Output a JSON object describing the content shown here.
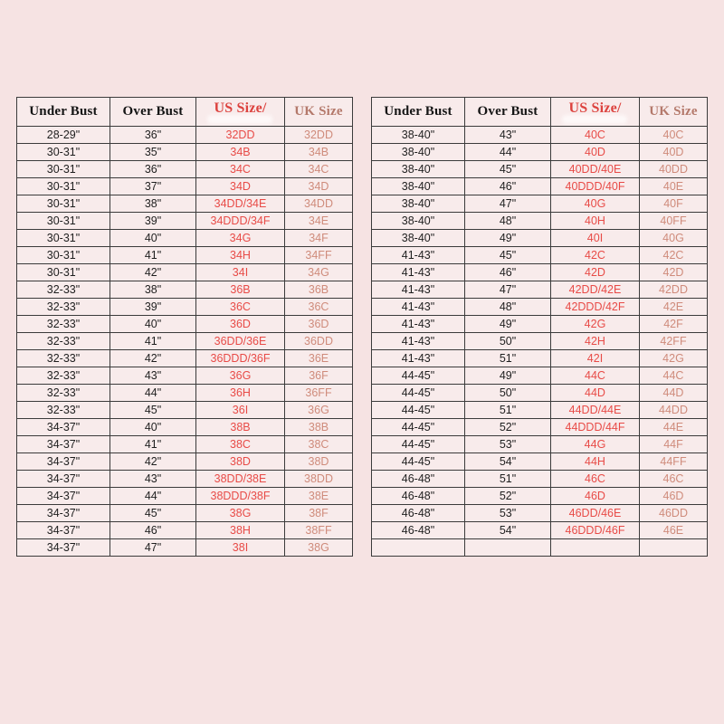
{
  "page": {
    "background_color": "#f6e3e3"
  },
  "colors": {
    "table_border": "#3b3b3b",
    "cell_background": "#f8ebeb",
    "measurement_text": "#1f1f1f",
    "us_header_text": "#dc423e",
    "uk_header_text": "#b4796b",
    "us_size_text": "#e84b47",
    "uk_size_text": "#cf8b7b"
  },
  "chart_data": [
    {
      "type": "table",
      "columns": [
        "Under Bust",
        "Over Bust",
        "US Size/",
        "UK Size"
      ],
      "rows": [
        [
          "28-29\"",
          "36\"",
          "32DD",
          "32DD"
        ],
        [
          "30-31\"",
          "35\"",
          "34B",
          "34B"
        ],
        [
          "30-31\"",
          "36\"",
          "34C",
          "34C"
        ],
        [
          "30-31\"",
          "37\"",
          "34D",
          "34D"
        ],
        [
          "30-31\"",
          "38\"",
          "34DD/34E",
          "34DD"
        ],
        [
          "30-31\"",
          "39\"",
          "34DDD/34F",
          "34E"
        ],
        [
          "30-31\"",
          "40\"",
          "34G",
          "34F"
        ],
        [
          "30-31\"",
          "41\"",
          "34H",
          "34FF"
        ],
        [
          "30-31\"",
          "42\"",
          "34I",
          "34G"
        ],
        [
          "32-33\"",
          "38\"",
          "36B",
          "36B"
        ],
        [
          "32-33\"",
          "39\"",
          "36C",
          "36C"
        ],
        [
          "32-33\"",
          "40\"",
          "36D",
          "36D"
        ],
        [
          "32-33\"",
          "41\"",
          "36DD/36E",
          "36DD"
        ],
        [
          "32-33\"",
          "42\"",
          "36DDD/36F",
          "36E"
        ],
        [
          "32-33\"",
          "43\"",
          "36G",
          "36F"
        ],
        [
          "32-33\"",
          "44\"",
          "36H",
          "36FF"
        ],
        [
          "32-33\"",
          "45\"",
          "36I",
          "36G"
        ],
        [
          "34-37\"",
          "40\"",
          "38B",
          "38B"
        ],
        [
          "34-37\"",
          "41\"",
          "38C",
          "38C"
        ],
        [
          "34-37\"",
          "42\"",
          "38D",
          "38D"
        ],
        [
          "34-37\"",
          "43\"",
          "38DD/38E",
          "38DD"
        ],
        [
          "34-37\"",
          "44\"",
          "38DDD/38F",
          "38E"
        ],
        [
          "34-37\"",
          "45\"",
          "38G",
          "38F"
        ],
        [
          "34-37\"",
          "46\"",
          "38H",
          "38FF"
        ],
        [
          "34-37\"",
          "47\"",
          "38I",
          "38G"
        ]
      ]
    },
    {
      "type": "table",
      "columns": [
        "Under Bust",
        "Over Bust",
        "US Size/",
        "UK Size"
      ],
      "rows": [
        [
          "38-40\"",
          "43\"",
          "40C",
          "40C"
        ],
        [
          "38-40\"",
          "44\"",
          "40D",
          "40D"
        ],
        [
          "38-40\"",
          "45\"",
          "40DD/40E",
          "40DD"
        ],
        [
          "38-40\"",
          "46\"",
          "40DDD/40F",
          "40E"
        ],
        [
          "38-40\"",
          "47\"",
          "40G",
          "40F"
        ],
        [
          "38-40\"",
          "48\"",
          "40H",
          "40FF"
        ],
        [
          "38-40\"",
          "49\"",
          "40I",
          "40G"
        ],
        [
          "41-43\"",
          "45\"",
          "42C",
          "42C"
        ],
        [
          "41-43\"",
          "46\"",
          "42D",
          "42D"
        ],
        [
          "41-43\"",
          "47\"",
          "42DD/42E",
          "42DD"
        ],
        [
          "41-43\"",
          "48\"",
          "42DDD/42F",
          "42E"
        ],
        [
          "41-43\"",
          "49\"",
          "42G",
          "42F"
        ],
        [
          "41-43\"",
          "50\"",
          "42H",
          "42FF"
        ],
        [
          "41-43\"",
          "51\"",
          "42I",
          "42G"
        ],
        [
          "44-45\"",
          "49\"",
          "44C",
          "44C"
        ],
        [
          "44-45\"",
          "50\"",
          "44D",
          "44D"
        ],
        [
          "44-45\"",
          "51\"",
          "44DD/44E",
          "44DD"
        ],
        [
          "44-45\"",
          "52\"",
          "44DDD/44F",
          "44E"
        ],
        [
          "44-45\"",
          "53\"",
          "44G",
          "44F"
        ],
        [
          "44-45\"",
          "54\"",
          "44H",
          "44FF"
        ],
        [
          "46-48\"",
          "51\"",
          "46C",
          "46C"
        ],
        [
          "46-48\"",
          "52\"",
          "46D",
          "46D"
        ],
        [
          "46-48\"",
          "53\"",
          "46DD/46E",
          "46DD"
        ],
        [
          "46-48\"",
          "54\"",
          "46DDD/46F",
          "46E"
        ],
        [
          "",
          "",
          "",
          ""
        ]
      ]
    }
  ]
}
